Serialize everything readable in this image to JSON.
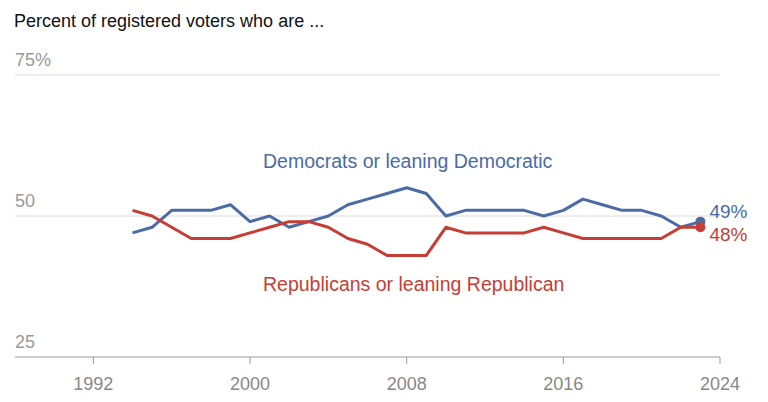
{
  "chart_data": {
    "type": "line",
    "title": "Percent of registered voters who are ...",
    "x": [
      1994,
      1995,
      1996,
      1997,
      1998,
      1999,
      2000,
      2001,
      2002,
      2003,
      2004,
      2005,
      2006,
      2007,
      2008,
      2009,
      2010,
      2011,
      2012,
      2013,
      2014,
      2015,
      2016,
      2017,
      2018,
      2019,
      2020,
      2021,
      2022,
      2023
    ],
    "series": [
      {
        "name": "Democrats or leaning Democratic",
        "color": "#4a6ba6",
        "values": [
          47,
          48,
          51,
          51,
          51,
          52,
          49,
          50,
          48,
          49,
          50,
          52,
          53,
          54,
          55,
          54,
          50,
          51,
          51,
          51,
          51,
          50,
          51,
          53,
          52,
          51,
          51,
          50,
          48,
          49
        ],
        "value_labels": [
          null,
          null,
          null,
          null,
          null,
          null,
          null,
          null,
          null,
          null,
          null,
          null,
          null,
          null,
          null,
          null,
          null,
          null,
          null,
          null,
          null,
          null,
          null,
          null,
          null,
          null,
          null,
          null,
          null,
          "49%"
        ]
      },
      {
        "name": "Republicans or leaning Republican",
        "color": "#c63d35",
        "values": [
          51,
          50,
          48,
          46,
          46,
          46,
          47,
          48,
          49,
          49,
          48,
          46,
          45,
          43,
          43,
          43,
          48,
          47,
          47,
          47,
          47,
          48,
          47,
          46,
          46,
          46,
          46,
          46,
          48,
          48
        ],
        "value_labels": [
          null,
          null,
          null,
          null,
          null,
          null,
          null,
          null,
          null,
          null,
          null,
          null,
          null,
          null,
          null,
          null,
          null,
          null,
          null,
          null,
          null,
          null,
          null,
          null,
          null,
          null,
          null,
          null,
          null,
          "48%"
        ]
      }
    ],
    "xlim": [
      1988,
      2024
    ],
    "xticks": [
      1992,
      2000,
      2008,
      2016,
      2024
    ],
    "ylim": [
      25,
      75
    ],
    "yticks": [
      25,
      50,
      {
        "value": 75,
        "label": "75%"
      }
    ],
    "grid": true
  }
}
